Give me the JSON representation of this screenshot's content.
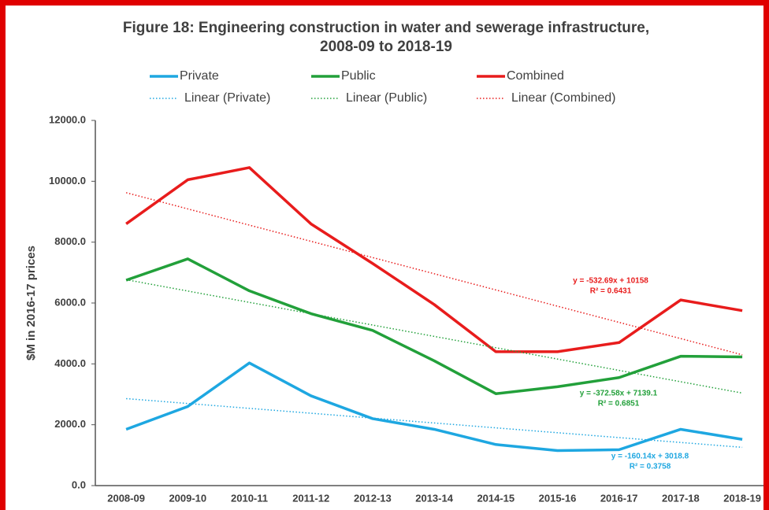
{
  "chart_data": {
    "type": "line",
    "title": "Figure 18: Engineering construction in water and sewerage infrastructure,",
    "subtitle": "2008-09 to 2018-19",
    "ylabel": "$M in 2016-17 prices",
    "categories": [
      "2008-09",
      "2009-10",
      "2010-11",
      "2011-12",
      "2012-13",
      "2013-14",
      "2014-15",
      "2015-16",
      "2016-17",
      "2017-18",
      "2018-19"
    ],
    "series": [
      {
        "name": "Private",
        "color": "#1ea7e1",
        "style": "solid",
        "values": [
          1850,
          2600,
          4030,
          2950,
          2200,
          1850,
          1350,
          1150,
          1180,
          1850,
          1520
        ]
      },
      {
        "name": "Public",
        "color": "#22a03a",
        "style": "solid",
        "values": [
          6750,
          7450,
          6400,
          5650,
          5100,
          4100,
          3020,
          3250,
          3550,
          4250,
          4230
        ]
      },
      {
        "name": "Combined",
        "color": "#e81c1c",
        "style": "solid",
        "values": [
          8600,
          10050,
          10450,
          8600,
          7300,
          5950,
          4400,
          4400,
          4700,
          6100,
          5750
        ]
      },
      {
        "name": "Linear (Private)",
        "color": "#1ea7e1",
        "style": "dotted",
        "values": [
          2858.7,
          2698.5,
          2538.4,
          2378.2,
          2218.1,
          2058.0,
          1897.8,
          1737.7,
          1577.5,
          1417.4,
          1257.3
        ]
      },
      {
        "name": "Linear (Public)",
        "color": "#22a03a",
        "style": "dotted",
        "values": [
          6766.5,
          6393.9,
          6021.4,
          5648.8,
          5276.2,
          4903.6,
          4531.0,
          4158.5,
          3785.9,
          3413.3,
          3040.7
        ]
      },
      {
        "name": "Linear (Combined)",
        "color": "#e81c1c",
        "style": "dotted",
        "values": [
          9625.3,
          9092.6,
          8559.9,
          8027.2,
          7494.6,
          6961.9,
          6429.2,
          5896.5,
          5363.8,
          4831.1,
          4298.4
        ]
      }
    ],
    "annotations": [
      {
        "text": "y = -532.69x + 10158",
        "color": "#e81c1c"
      },
      {
        "text": "R² = 0.6431",
        "color": "#e81c1c"
      },
      {
        "text": "y = -372.58x + 7139.1",
        "color": "#22a03a"
      },
      {
        "text": "R² = 0.6851",
        "color": "#22a03a"
      },
      {
        "text": "y = -160.14x + 3018.8",
        "color": "#1ea7e1"
      },
      {
        "text": "R² = 0.3758",
        "color": "#1ea7e1"
      }
    ],
    "ylim": [
      0,
      12000
    ],
    "yticks": [
      {
        "value": 0,
        "label": "0.0"
      },
      {
        "value": 2000,
        "label": "2000.0"
      },
      {
        "value": 4000,
        "label": "4000.0"
      },
      {
        "value": 6000,
        "label": "6000.0"
      },
      {
        "value": 8000,
        "label": "8000.0"
      },
      {
        "value": 10000,
        "label": "10000.0"
      },
      {
        "value": 12000,
        "label": "12000.0"
      }
    ],
    "grid": false
  }
}
